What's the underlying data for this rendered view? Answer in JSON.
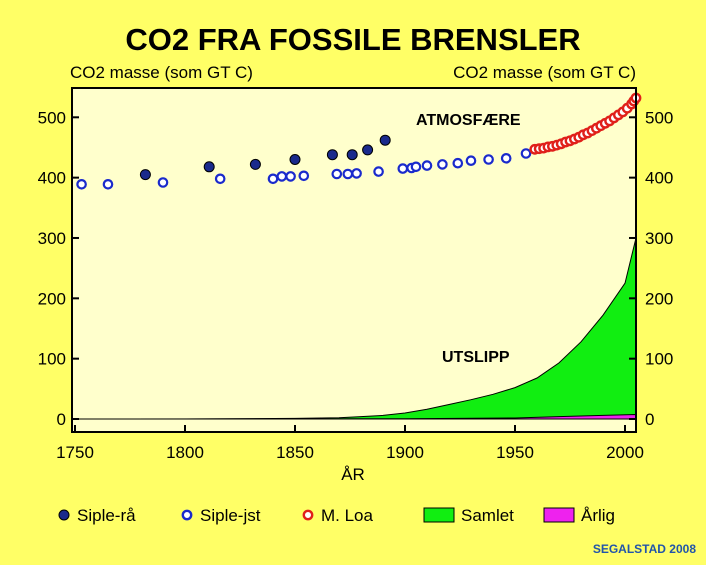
{
  "chart_data": {
    "type": "scatter+area",
    "title": "CO2 FRA FOSSILE BRENSLER",
    "ylabel_left": "CO2 masse (som GT C)",
    "ylabel_right": "CO2 masse (som GT C)",
    "xlabel": "ÅR",
    "xlim": [
      1750,
      2007
    ],
    "ylim": [
      -10,
      550
    ],
    "xticks": [
      1750,
      1800,
      1850,
      1900,
      1950,
      2000
    ],
    "yticks": [
      0,
      100,
      200,
      300,
      400,
      500
    ],
    "annotations": [
      "ATMOSFÆRE",
      "UTSLIPP"
    ],
    "credit": "SEGALSTAD 2008",
    "colors": {
      "background": "#ffff66",
      "plot_bg": "#ffffcc",
      "siple_ra": "#1a2a8c",
      "siple_jst": "#1a2acc",
      "m_loa": "#e0201a",
      "samlet": "#11ee11",
      "arlig": "#ee22ee"
    },
    "series": [
      {
        "name": "Siple-rå",
        "kind": "filled-circle",
        "points": [
          [
            1782,
            405
          ],
          [
            1811,
            418
          ],
          [
            1832,
            422
          ],
          [
            1850,
            430
          ],
          [
            1867,
            438
          ],
          [
            1876,
            438
          ],
          [
            1883,
            446
          ],
          [
            1891,
            462
          ]
        ]
      },
      {
        "name": "Siple-jst",
        "kind": "open-circle",
        "points": [
          [
            1753,
            389
          ],
          [
            1765,
            389
          ],
          [
            1790,
            392
          ],
          [
            1816,
            398
          ],
          [
            1840,
            398
          ],
          [
            1844,
            402
          ],
          [
            1848,
            402
          ],
          [
            1854,
            403
          ],
          [
            1869,
            406
          ],
          [
            1874,
            406
          ],
          [
            1878,
            407
          ],
          [
            1888,
            410
          ],
          [
            1899,
            415
          ],
          [
            1903,
            416
          ],
          [
            1905,
            418
          ],
          [
            1910,
            420
          ],
          [
            1917,
            422
          ],
          [
            1924,
            424
          ],
          [
            1930,
            428
          ],
          [
            1938,
            430
          ],
          [
            1946,
            432
          ],
          [
            1955,
            440
          ]
        ]
      },
      {
        "name": "M. Loa",
        "kind": "open-circle",
        "points": [
          [
            1959,
            447
          ],
          [
            1961,
            448
          ],
          [
            1963,
            449
          ],
          [
            1965,
            451
          ],
          [
            1967,
            452
          ],
          [
            1969,
            454
          ],
          [
            1971,
            456
          ],
          [
            1973,
            459
          ],
          [
            1975,
            461
          ],
          [
            1977,
            464
          ],
          [
            1979,
            467
          ],
          [
            1981,
            471
          ],
          [
            1983,
            474
          ],
          [
            1985,
            478
          ],
          [
            1987,
            482
          ],
          [
            1989,
            486
          ],
          [
            1991,
            490
          ],
          [
            1993,
            494
          ],
          [
            1995,
            499
          ],
          [
            1997,
            504
          ],
          [
            1999,
            509
          ],
          [
            2001,
            515
          ],
          [
            2003,
            522
          ],
          [
            2004,
            527
          ],
          [
            2005,
            532
          ]
        ]
      },
      {
        "name": "Samlet",
        "kind": "area",
        "points": [
          [
            1750,
            0
          ],
          [
            1800,
            0
          ],
          [
            1850,
            1
          ],
          [
            1870,
            2
          ],
          [
            1880,
            4
          ],
          [
            1890,
            6
          ],
          [
            1900,
            10
          ],
          [
            1910,
            16
          ],
          [
            1920,
            24
          ],
          [
            1930,
            32
          ],
          [
            1940,
            41
          ],
          [
            1950,
            52
          ],
          [
            1960,
            68
          ],
          [
            1970,
            93
          ],
          [
            1980,
            128
          ],
          [
            1990,
            172
          ],
          [
            2000,
            225
          ],
          [
            2005,
            300
          ]
        ]
      },
      {
        "name": "Årlig",
        "kind": "area",
        "points": [
          [
            1750,
            0
          ],
          [
            1900,
            0.5
          ],
          [
            1950,
            1.6
          ],
          [
            1970,
            4
          ],
          [
            1990,
            6
          ],
          [
            2005,
            7.5
          ]
        ]
      }
    ]
  }
}
